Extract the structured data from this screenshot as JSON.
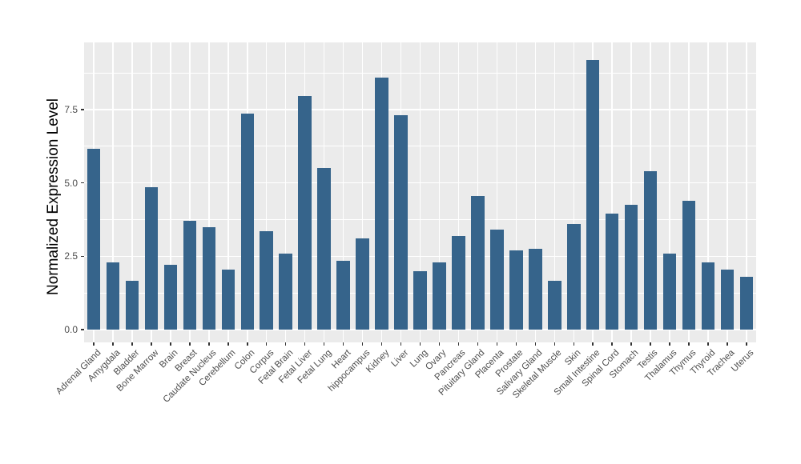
{
  "chart_data": {
    "type": "bar",
    "title": "",
    "xlabel": "",
    "ylabel": "Normalized Expression Level",
    "categories": [
      "Adrenal Gland",
      "Amygdala",
      "Bladder",
      "Bone Marrow",
      "Brain",
      "Breast",
      "Caudate Nucleus",
      "Cerebellum",
      "Colon",
      "Corpus",
      "Fetal Brain",
      "Fetal Liver",
      "Fetal Lung",
      "Heart",
      "hippocampus",
      "Kidney",
      "Liver",
      "Lung",
      "Ovary",
      "Pancreas",
      "Pituitary Gland",
      "Placenta",
      "Prostate",
      "Salivary Gland",
      "Skeletal Muscle",
      "Skin",
      "Small Intestine",
      "Spinal Cord",
      "Stomach",
      "Testis",
      "Thalamus",
      "Thymus",
      "Thyroid",
      "Trachea",
      "Uterus"
    ],
    "values": [
      6.15,
      2.3,
      1.65,
      4.85,
      2.2,
      3.7,
      3.5,
      2.05,
      7.35,
      3.35,
      2.6,
      7.95,
      5.5,
      2.35,
      3.1,
      8.6,
      7.3,
      2.0,
      2.3,
      3.2,
      4.55,
      3.4,
      2.7,
      2.75,
      1.65,
      3.6,
      9.2,
      3.95,
      4.25,
      5.4,
      2.6,
      4.4,
      2.3,
      2.05,
      1.8
    ],
    "yticks": [
      0,
      2.5,
      5,
      7.5
    ],
    "ytick_labels": [
      "0.0",
      "2.5",
      "5.0",
      "7.5"
    ],
    "minor_gridlines": [
      1.25,
      3.75,
      6.25,
      8.75
    ],
    "ylim": [
      -0.45,
      9.8
    ],
    "grid": true,
    "legend": "none",
    "style": {
      "bar_color": "#36648B",
      "panel_background": "#EBEBEB",
      "grid_color": "#FFFFFF",
      "axis_text_color": "#4D4D4D",
      "axis_title_color": "#000000",
      "tick_mark_color": "#333333",
      "figure_background": "#FFFFFF"
    }
  }
}
